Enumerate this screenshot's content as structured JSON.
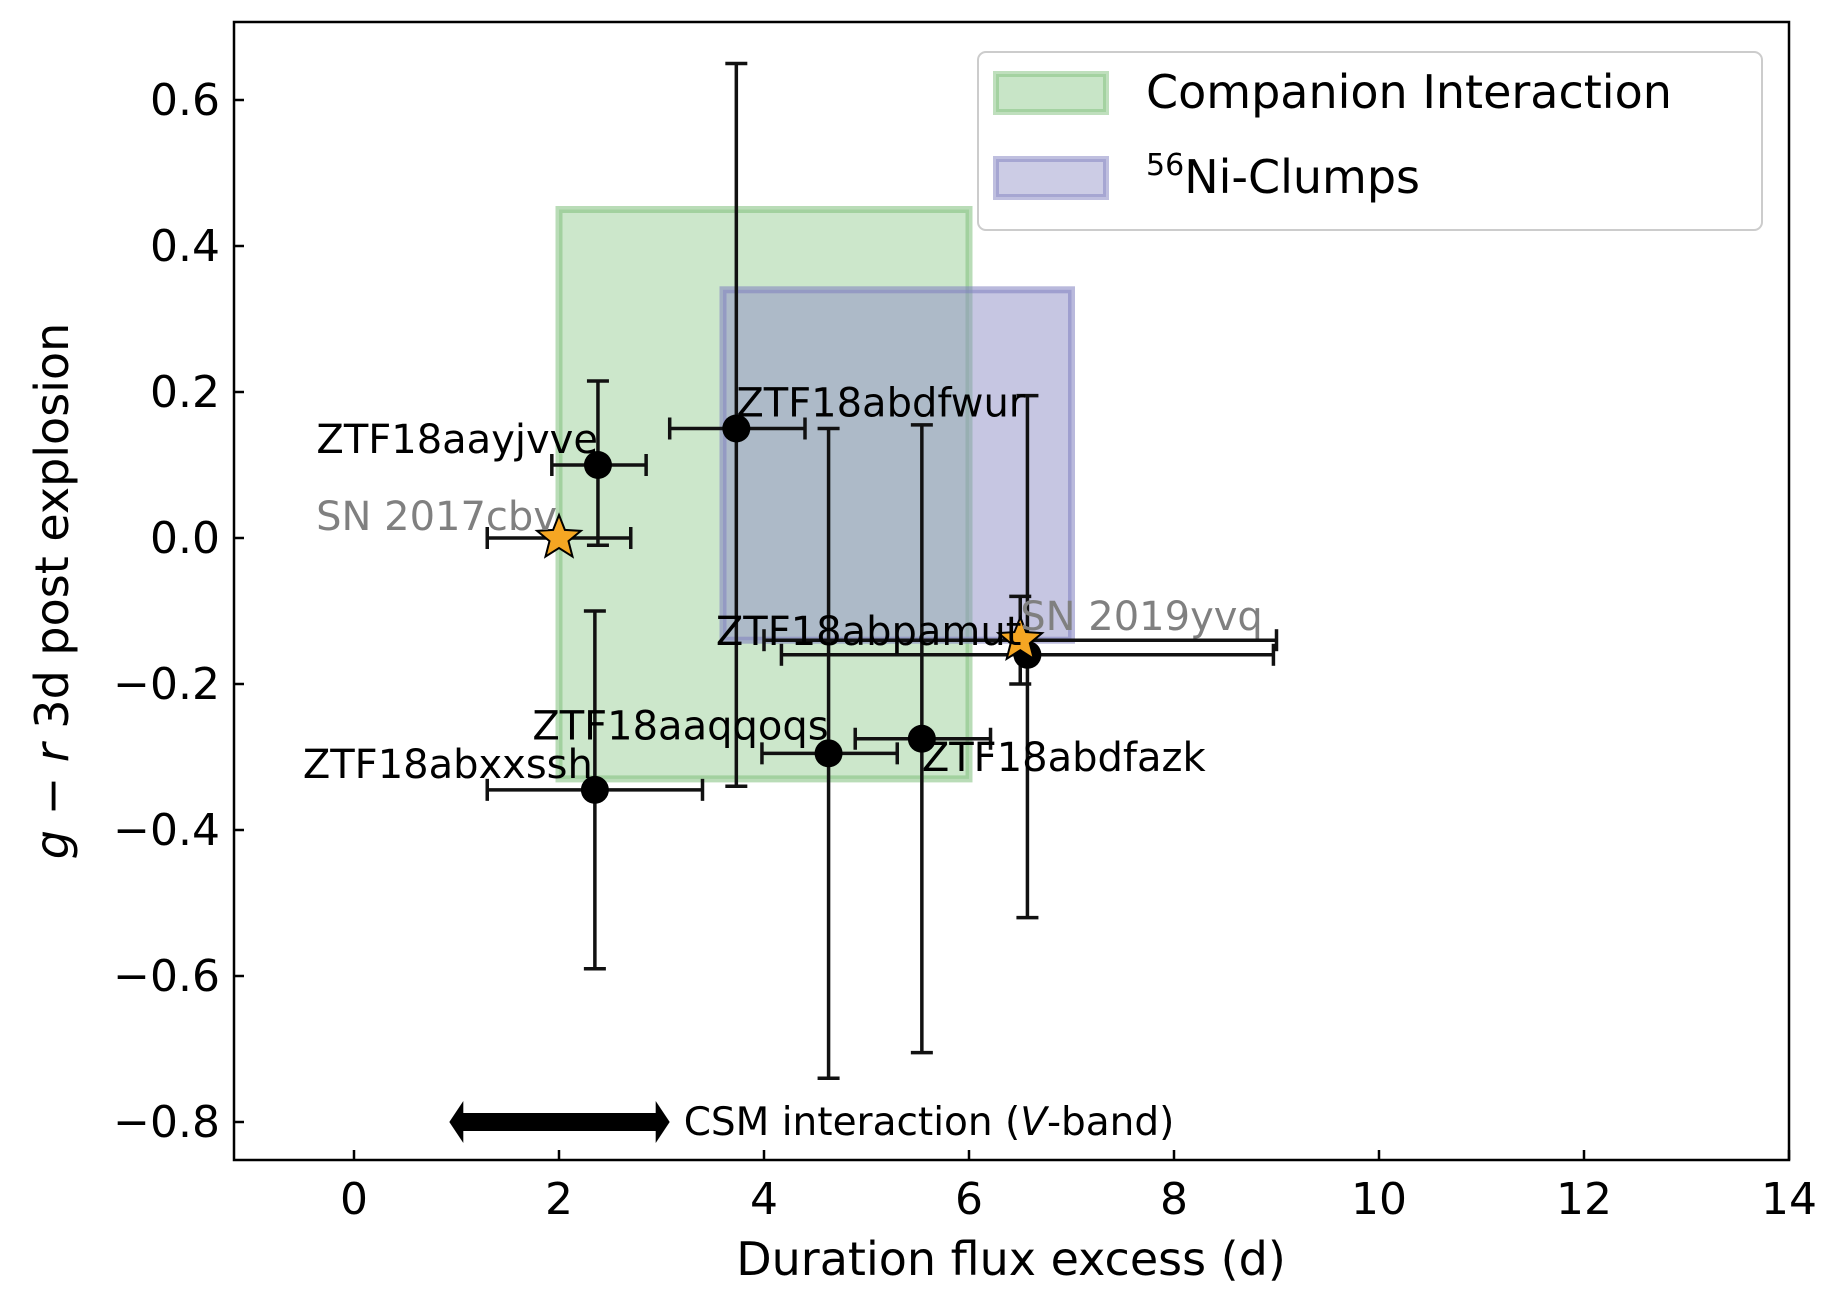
{
  "chart_data": {
    "type": "scatter",
    "title": "",
    "xlabel": "Duration flux excess (d)",
    "ylabel_parts": [
      "g",
      " − ",
      "r",
      " 3d post explosion"
    ],
    "xlim": [
      -1.2,
      14
    ],
    "ylim": [
      -0.85,
      0.7
    ],
    "xticks": [
      0,
      2,
      4,
      6,
      8,
      10,
      12,
      14
    ],
    "xtick_labels": [
      "0",
      "2",
      "4",
      "6",
      "8",
      "10",
      "12",
      "14"
    ],
    "yticks": [
      0.6,
      0.4,
      0.2,
      0.0,
      -0.2,
      -0.4,
      -0.6,
      -0.8
    ],
    "ytick_labels": [
      "0.6",
      "0.4",
      "0.2",
      "0.0",
      "−0.2",
      "−0.4",
      "−0.6",
      "−0.8"
    ],
    "regions": [
      {
        "name": "Companion Interaction",
        "x": [
          2.0,
          6.0
        ],
        "y": [
          -0.33,
          0.45
        ],
        "fill": "#a3d3a1",
        "edge": "#7fbf7b"
      },
      {
        "name": "56Ni-Clumps",
        "x": [
          3.6,
          7.0
        ],
        "y": [
          -0.14,
          0.34
        ],
        "fill": "#8e8ec6",
        "edge": "#7f7fc0"
      }
    ],
    "legend": {
      "placement": "top-right",
      "items": [
        {
          "label": "Companion Interaction",
          "sup": "",
          "color": "#a3d3a1"
        },
        {
          "label": "Ni-Clumps",
          "sup": "56",
          "color": "#8e8ec6"
        }
      ]
    },
    "points": [
      {
        "name": "ZTF18aayjvve",
        "x": 2.38,
        "y": 0.1,
        "xerr": [
          0.45,
          0.47
        ],
        "yerr": [
          0.11,
          0.115
        ],
        "marker": "circle",
        "color": "#000000"
      },
      {
        "name": "ZTF18abdfwur",
        "x": 3.73,
        "y": 0.15,
        "xerr": [
          0.65,
          0.67
        ],
        "yerr": [
          0.49,
          0.5
        ],
        "marker": "circle",
        "color": "#000000"
      },
      {
        "name": "ZTF18abpamut",
        "x": 6.57,
        "y": -0.16,
        "xerr": [
          2.4,
          2.4
        ],
        "yerr": [
          0.36,
          0.355
        ],
        "marker": "circle",
        "color": "#000000"
      },
      {
        "name": "ZTF18aaqqoqs",
        "x": 4.63,
        "y": -0.295,
        "xerr": [
          0.65,
          0.67
        ],
        "yerr": [
          0.445,
          0.445
        ],
        "marker": "circle",
        "color": "#000000"
      },
      {
        "name": "ZTF18abdfazk",
        "x": 5.54,
        "y": -0.275,
        "xerr": [
          0.65,
          0.67
        ],
        "yerr": [
          0.43,
          0.43
        ],
        "marker": "circle",
        "color": "#000000"
      },
      {
        "name": "ZTF18abxxssh",
        "x": 2.35,
        "y": -0.345,
        "xerr": [
          1.05,
          1.05
        ],
        "yerr": [
          0.245,
          0.245
        ],
        "marker": "circle",
        "color": "#000000"
      },
      {
        "name": "SN 2017cbv",
        "x": 2.0,
        "y": 0.0,
        "xerr": [
          0.7,
          0.7
        ],
        "yerr": [
          0,
          0
        ],
        "marker": "star",
        "color": "#f5a623"
      },
      {
        "name": "SN 2019yvq",
        "x": 6.5,
        "y": -0.14,
        "xerr": [
          2.5,
          2.5
        ],
        "yerr": [
          0.06,
          0.06
        ],
        "marker": "star",
        "color": "#f5a623"
      }
    ],
    "point_labels": [
      {
        "text": "ZTF18aayjvve",
        "x": 2.38,
        "y": 0.1,
        "anchor": "end",
        "color": "#000000"
      },
      {
        "text": "ZTF18abdfwur",
        "x": 3.73,
        "y": 0.15,
        "anchor": "start",
        "color": "#000000"
      },
      {
        "text": "ZTF18abpamut",
        "x": 6.57,
        "y": -0.16,
        "anchor": "end",
        "color": "#000000"
      },
      {
        "text": "ZTF18aaqqoqs",
        "x": 4.63,
        "y": -0.295,
        "anchor": "end",
        "color": "#000000"
      },
      {
        "text": "ZTF18abdfazk",
        "x": 5.54,
        "y": -0.275,
        "anchor": "start",
        "color": "#000000"
      },
      {
        "text": "ZTF18abxxssh",
        "x": 2.35,
        "y": -0.345,
        "anchor": "end",
        "color": "#000000"
      },
      {
        "text": "SN 2017cbv",
        "x": 2.0,
        "y": 0.0,
        "anchor": "end",
        "color": "#808080"
      },
      {
        "text": "SN 2019yvq",
        "x": 6.5,
        "y": -0.14,
        "anchor": "start",
        "color": "#808080"
      }
    ],
    "annotation": {
      "text_before": "CSM interaction (",
      "text_italic": "V",
      "text_after": "-band)",
      "arrow_x": [
        0.93,
        3.08
      ],
      "y": -0.8
    }
  }
}
